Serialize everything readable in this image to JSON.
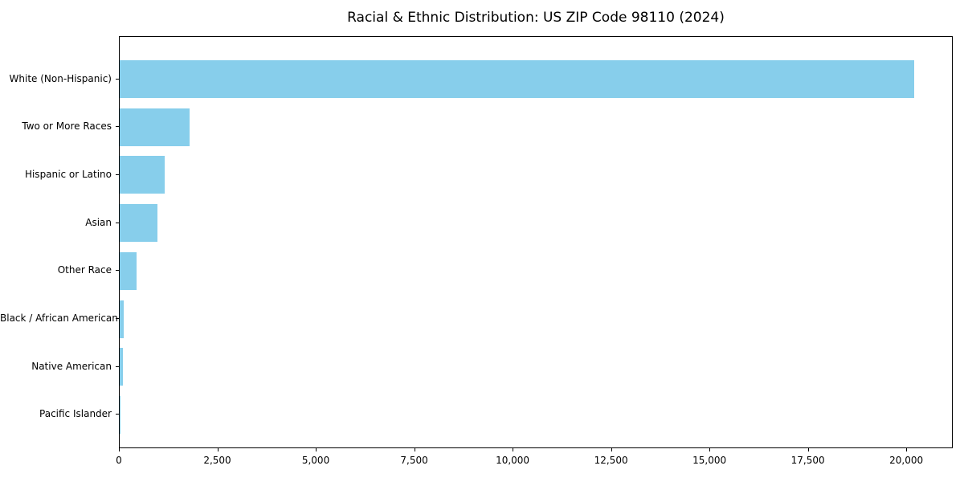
{
  "chart_data": {
    "type": "bar",
    "orientation": "horizontal",
    "title": "Racial & Ethnic Distribution: US ZIP Code 98110 (2024)",
    "xlabel": "",
    "ylabel": "",
    "categories": [
      "White (Non-Hispanic)",
      "Two or More Races",
      "Hispanic or Latino",
      "Asian",
      "Other Race",
      "Black / African American",
      "Native American",
      "Pacific Islander"
    ],
    "values": [
      20175,
      1775,
      1140,
      965,
      430,
      110,
      85,
      15
    ],
    "xlim": [
      0,
      21180
    ],
    "xticks": [
      {
        "value": 0,
        "label": "0"
      },
      {
        "value": 2500,
        "label": "2,500"
      },
      {
        "value": 5000,
        "label": "5,000"
      },
      {
        "value": 7500,
        "label": "7,500"
      },
      {
        "value": 10000,
        "label": "10,000"
      },
      {
        "value": 12500,
        "label": "12,500"
      },
      {
        "value": 15000,
        "label": "15,000"
      },
      {
        "value": 17500,
        "label": "17,500"
      },
      {
        "value": 20000,
        "label": "20,000"
      }
    ],
    "bar_color": "#87CEEB",
    "axis_color": "#000000",
    "background_color": "#ffffff",
    "grid": false,
    "legend": null
  }
}
